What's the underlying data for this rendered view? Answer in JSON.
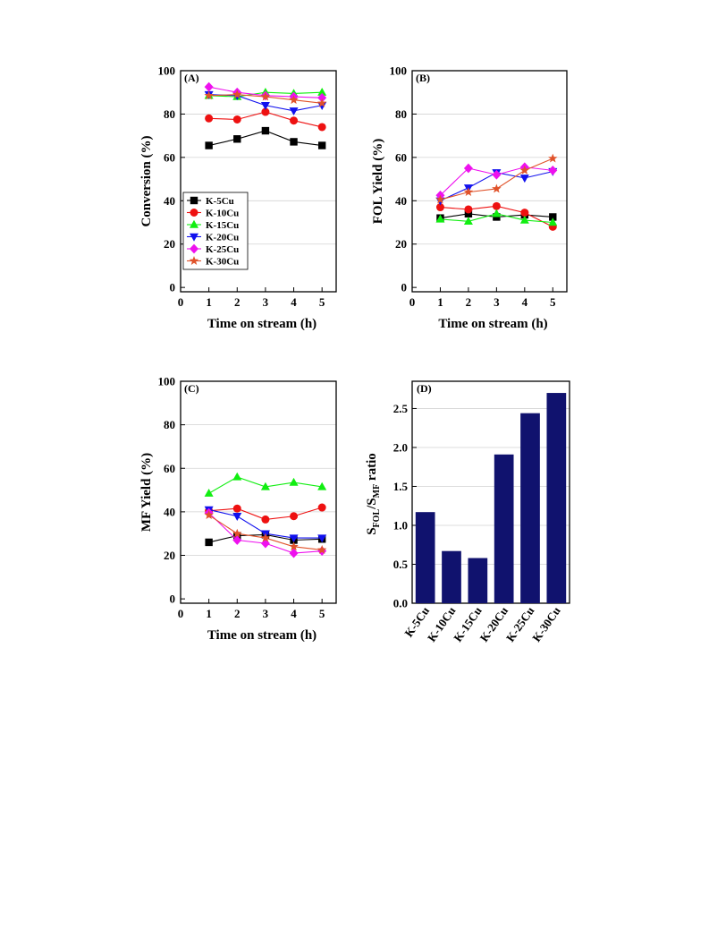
{
  "colors": {
    "K-5Cu": "#000000",
    "K-10Cu": "#ee1111",
    "K-15Cu": "#11ee11",
    "K-20Cu": "#1111ee",
    "K-25Cu": "#ee11ee",
    "K-30Cu": "#e0522a",
    "bar": "#10126e"
  },
  "chart_data": [
    {
      "panel": "(A)",
      "type": "line",
      "xlabel": "Time on stream (h)",
      "ylabel": "Conversion (%)",
      "xlim": [
        0,
        5.5
      ],
      "ylim": [
        -2,
        100
      ],
      "xticks": [
        0,
        1,
        2,
        3,
        4,
        5
      ],
      "yticks": [
        0,
        20,
        40,
        60,
        80,
        100
      ],
      "grid": true,
      "legend": "lower-left",
      "x": [
        1,
        2,
        3,
        4,
        5
      ],
      "series": [
        {
          "name": "K-5Cu",
          "marker": "square",
          "values": [
            65.5,
            68.5,
            72.3,
            67.2,
            65.5
          ]
        },
        {
          "name": "K-10Cu",
          "marker": "circle",
          "values": [
            78.0,
            77.5,
            81.0,
            77.0,
            74.0
          ]
        },
        {
          "name": "K-15Cu",
          "marker": "triangle-up",
          "values": [
            88.5,
            88.0,
            90.0,
            89.5,
            90.0
          ]
        },
        {
          "name": "K-20Cu",
          "marker": "triangle-down",
          "values": [
            89.0,
            88.5,
            84.0,
            81.5,
            84.0
          ]
        },
        {
          "name": "K-25Cu",
          "marker": "diamond",
          "values": [
            92.5,
            90.0,
            88.5,
            88.0,
            87.5
          ]
        },
        {
          "name": "K-30Cu",
          "marker": "star",
          "values": [
            88.5,
            89.0,
            88.0,
            86.5,
            85.0
          ]
        }
      ]
    },
    {
      "panel": "(B)",
      "type": "line",
      "xlabel": "Time on stream (h)",
      "ylabel": "FOL Yield (%)",
      "xlim": [
        0,
        5.5
      ],
      "ylim": [
        -2,
        100
      ],
      "xticks": [
        0,
        1,
        2,
        3,
        4,
        5
      ],
      "yticks": [
        0,
        20,
        40,
        60,
        80,
        100
      ],
      "grid": true,
      "x": [
        1,
        2,
        3,
        4,
        5
      ],
      "series": [
        {
          "name": "K-5Cu",
          "marker": "square",
          "values": [
            32.0,
            34.0,
            32.5,
            33.5,
            32.5
          ]
        },
        {
          "name": "K-10Cu",
          "marker": "circle",
          "values": [
            37.0,
            36.0,
            37.5,
            34.5,
            28.0
          ]
        },
        {
          "name": "K-15Cu",
          "marker": "triangle-up",
          "values": [
            31.5,
            30.5,
            34.0,
            31.0,
            30.0
          ]
        },
        {
          "name": "K-20Cu",
          "marker": "triangle-down",
          "values": [
            40.0,
            46.0,
            53.0,
            50.5,
            53.5
          ]
        },
        {
          "name": "K-25Cu",
          "marker": "diamond",
          "values": [
            42.5,
            55.0,
            52.0,
            55.5,
            54.0
          ]
        },
        {
          "name": "K-30Cu",
          "marker": "star",
          "values": [
            40.5,
            44.0,
            45.5,
            54.0,
            59.5
          ]
        }
      ]
    },
    {
      "panel": "(C)",
      "type": "line",
      "xlabel": "Time on stream (h)",
      "ylabel": "MF Yield (%)",
      "xlim": [
        0,
        5.5
      ],
      "ylim": [
        -2,
        100
      ],
      "xticks": [
        0,
        1,
        2,
        3,
        4,
        5
      ],
      "yticks": [
        0,
        20,
        40,
        60,
        80,
        100
      ],
      "grid": true,
      "x": [
        1,
        2,
        3,
        4,
        5
      ],
      "series": [
        {
          "name": "K-5Cu",
          "marker": "square",
          "values": [
            26.0,
            29.0,
            29.5,
            27.0,
            27.5
          ]
        },
        {
          "name": "K-10Cu",
          "marker": "circle",
          "values": [
            40.5,
            41.5,
            36.5,
            38.0,
            42.0
          ]
        },
        {
          "name": "K-15Cu",
          "marker": "triangle-up",
          "values": [
            48.5,
            56.0,
            51.5,
            53.5,
            51.5
          ]
        },
        {
          "name": "K-20Cu",
          "marker": "triangle-down",
          "values": [
            41.0,
            38.0,
            30.0,
            28.0,
            28.0
          ]
        },
        {
          "name": "K-25Cu",
          "marker": "diamond",
          "values": [
            39.5,
            27.0,
            25.5,
            21.0,
            22.0
          ]
        },
        {
          "name": "K-30Cu",
          "marker": "star",
          "values": [
            38.5,
            30.0,
            28.0,
            24.0,
            22.5
          ]
        }
      ]
    },
    {
      "panel": "(D)",
      "type": "bar",
      "ylabel_main": "S",
      "ylabel_sub1": "FOL",
      "ylabel_mid": "/S",
      "ylabel_sub2": "MF",
      "ylabel_tail": " ratio",
      "ylim": [
        0,
        2.85
      ],
      "yticks": [
        "0.0",
        "0.5",
        "1.0",
        "1.5",
        "2.0",
        "2.5"
      ],
      "grid": true,
      "categories": [
        "K-5Cu",
        "K-10Cu",
        "K-15Cu",
        "K-20Cu",
        "K-25Cu",
        "K-30Cu"
      ],
      "values": [
        1.17,
        0.67,
        0.58,
        1.91,
        2.44,
        2.7
      ]
    }
  ]
}
